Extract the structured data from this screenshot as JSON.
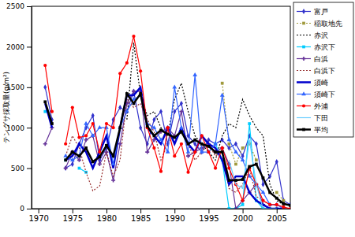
{
  "chart_data": {
    "type": "line",
    "y_label": "テングサ採取量(g/m²)",
    "x": [
      1971,
      1972,
      1973,
      1974,
      1975,
      1976,
      1977,
      1978,
      1979,
      1980,
      1981,
      1982,
      1983,
      1984,
      1985,
      1986,
      1987,
      1988,
      1989,
      1990,
      1991,
      1992,
      1993,
      1994,
      1995,
      1996,
      1997,
      1998,
      1999,
      2000,
      2001,
      2002,
      2003,
      2004,
      2005,
      2006,
      2007
    ],
    "xlim": [
      1969,
      2007
    ],
    "xticks": [
      1970,
      1975,
      1980,
      1985,
      1990,
      1995,
      2000,
      2005
    ],
    "ylim": [
      0,
      2500
    ],
    "yticks": [
      0,
      500,
      1000,
      1500,
      2000,
      2500
    ],
    "grid": false,
    "legend": "top-right",
    "series": [
      {
        "name": "富戸",
        "color": "#3333cc",
        "marker": "diamond",
        "line_style": "solid",
        "values": [
          1500,
          1100,
          null,
          500,
          550,
          800,
          1000,
          1150,
          600,
          750,
          1100,
          1250,
          1200,
          1450,
          1000,
          800,
          1100,
          1200,
          800,
          1200,
          1300,
          900,
          800,
          700,
          850,
          800,
          850,
          750,
          800,
          650,
          900,
          800,
          300,
          400,
          580,
          100,
          50
        ]
      },
      {
        "name": "稲取地先",
        "color": "#a09a3c",
        "marker": "square",
        "line_style": "dotted",
        "values": [
          null,
          null,
          null,
          null,
          null,
          null,
          null,
          null,
          null,
          null,
          null,
          null,
          null,
          null,
          null,
          null,
          null,
          null,
          null,
          null,
          null,
          null,
          null,
          null,
          null,
          null,
          1550,
          800,
          550,
          750,
          800,
          600,
          null,
          null,
          200,
          100,
          null
        ]
      },
      {
        "name": "赤沢",
        "color": "#000000",
        "marker": "none",
        "line_style": "dotted",
        "values": [
          null,
          null,
          null,
          null,
          null,
          null,
          null,
          null,
          null,
          null,
          null,
          null,
          1100,
          2050,
          1400,
          1150,
          1200,
          1000,
          900,
          1350,
          1550,
          1200,
          900,
          800,
          700,
          600,
          900,
          1050,
          1000,
          1350,
          1150,
          1000,
          900,
          300,
          100,
          50,
          null
        ]
      },
      {
        "name": "赤沢下",
        "color": "#00ccff",
        "marker": "square",
        "line_style": "solid",
        "values": [
          1200,
          null,
          null,
          600,
          null,
          500,
          450,
          null,
          null,
          null,
          null,
          null,
          null,
          null,
          null,
          null,
          null,
          null,
          null,
          null,
          null,
          null,
          null,
          null,
          null,
          800,
          600,
          0,
          0,
          50,
          1050,
          100,
          0,
          0,
          0,
          null,
          null
        ]
      },
      {
        "name": "白浜",
        "color": "#663399",
        "marker": "cross",
        "line_style": "solid",
        "values": [
          800,
          1000,
          null,
          500,
          700,
          600,
          850,
          900,
          550,
          700,
          350,
          800,
          1300,
          1450,
          1450,
          700,
          850,
          950,
          1000,
          900,
          1200,
          650,
          700,
          750,
          800,
          700,
          750,
          550,
          0,
          100,
          200,
          300,
          50,
          0,
          0,
          0,
          null
        ]
      },
      {
        "name": "白浜下",
        "color": "#993333",
        "marker": "none",
        "line_style": "dotted",
        "values": [
          1300,
          1050,
          null,
          650,
          900,
          750,
          450,
          220,
          280,
          700,
          400,
          600,
          1350,
          1250,
          1300,
          1100,
          950,
          600,
          800,
          900,
          950,
          800,
          600,
          700,
          800,
          650,
          700,
          250,
          200,
          300,
          500,
          150,
          100,
          50,
          50,
          0,
          null
        ]
      },
      {
        "name": "須崎",
        "color": "#0000cc",
        "marker": "none",
        "line_style": "solid",
        "values": [
          1300,
          1000,
          null,
          600,
          650,
          800,
          700,
          500,
          700,
          900,
          500,
          1000,
          1400,
          1400,
          1500,
          1000,
          900,
          800,
          1000,
          800,
          1000,
          800,
          700,
          900,
          800,
          750,
          600,
          300,
          400,
          400,
          200,
          100,
          50,
          0,
          0,
          0,
          null
        ]
      },
      {
        "name": "須崎下",
        "color": "#3366ff",
        "marker": "triangle",
        "line_style": "solid",
        "values": [
          null,
          null,
          null,
          650,
          600,
          650,
          1050,
          900,
          1000,
          1000,
          550,
          1000,
          1200,
          1350,
          1400,
          1050,
          1000,
          850,
          700,
          1500,
          1000,
          700,
          1650,
          700,
          700,
          800,
          1400,
          850,
          700,
          600,
          400,
          300,
          200,
          50,
          50,
          0,
          null
        ]
      },
      {
        "name": "外浦",
        "color": "#ff0000",
        "marker": "circle",
        "line_style": "solid",
        "values": [
          1770,
          1200,
          null,
          800,
          1250,
          880,
          900,
          1050,
          700,
          1050,
          1000,
          1670,
          1800,
          2130,
          1700,
          1000,
          750,
          460,
          1000,
          650,
          800,
          450,
          700,
          900,
          700,
          500,
          750,
          500,
          300,
          100,
          500,
          300,
          100,
          50,
          50,
          20,
          0
        ]
      },
      {
        "name": "下田",
        "color": "#66ccff",
        "marker": "none",
        "line_style": "solid",
        "values": [
          1150,
          null,
          null,
          null,
          null,
          null,
          null,
          null,
          null,
          null,
          null,
          null,
          null,
          null,
          null,
          null,
          null,
          null,
          null,
          null,
          null,
          null,
          null,
          null,
          null,
          null,
          null,
          600,
          300,
          250,
          850,
          300,
          0,
          0,
          0,
          null,
          null
        ]
      },
      {
        "name": "平均",
        "color": "#000000",
        "marker": "square",
        "line_style": "solid",
        "values": [
          1320,
          1050,
          null,
          600,
          700,
          650,
          750,
          580,
          640,
          780,
          650,
          1000,
          1420,
          1300,
          1420,
          1020,
          900,
          970,
          920,
          880,
          950,
          800,
          850,
          800,
          770,
          700,
          700,
          350,
          350,
          360,
          520,
          550,
          380,
          200,
          130,
          60,
          40
        ]
      }
    ]
  }
}
